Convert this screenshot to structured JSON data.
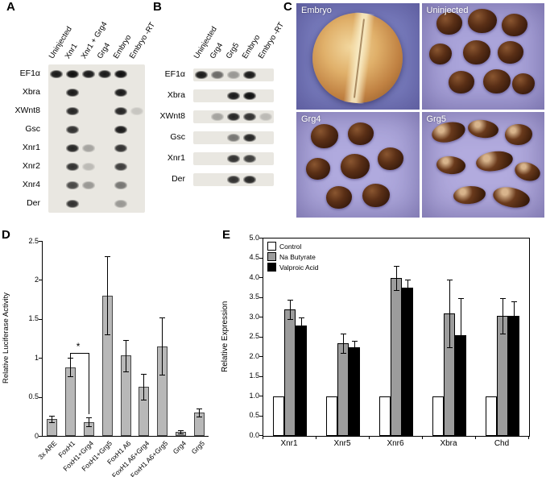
{
  "figure": {
    "panel_labels": {
      "A": "A",
      "B": "B",
      "C": "C",
      "D": "D",
      "E": "E"
    }
  },
  "gels": {
    "A": {
      "lanes": [
        "Uninjected",
        "Xnr1",
        "Xnr1 + Grg4",
        "Grg4",
        "Embryo",
        "Embryo -RT"
      ],
      "rows": [
        {
          "gene": "EF1α",
          "bands": [
            0.9,
            0.95,
            0.9,
            0.9,
            0.95,
            0
          ]
        },
        {
          "gene": "Xbra",
          "bands": [
            0,
            0.9,
            0,
            0,
            0.9,
            0
          ]
        },
        {
          "gene": "XWnt8",
          "bands": [
            0,
            0.85,
            0,
            0,
            0.85,
            0.15
          ]
        },
        {
          "gene": "Gsc",
          "bands": [
            0,
            0.8,
            0,
            0,
            0.9,
            0
          ]
        },
        {
          "gene": "Xnr1",
          "bands": [
            0,
            0.85,
            0.3,
            0,
            0.8,
            0
          ]
        },
        {
          "gene": "Xnr2",
          "bands": [
            0,
            0.8,
            0.2,
            0,
            0.75,
            0
          ]
        },
        {
          "gene": "Xnr4",
          "bands": [
            0,
            0.7,
            0.35,
            0,
            0.5,
            0
          ]
        },
        {
          "gene": "Der",
          "bands": [
            0,
            0.8,
            0,
            0,
            0.35,
            0
          ]
        }
      ]
    },
    "B": {
      "lanes": [
        "Uninjected",
        "Grg4",
        "Grg5",
        "Embryo",
        "Embryo -RT"
      ],
      "rows": [
        {
          "gene": "EF1α",
          "bands": [
            0.9,
            0.55,
            0.35,
            0.9,
            0
          ]
        },
        {
          "gene": "Xbra",
          "bands": [
            0,
            0,
            0.9,
            0.95,
            0
          ]
        },
        {
          "gene": "XWnt8",
          "bands": [
            0,
            0.3,
            0.85,
            0.8,
            0.2
          ]
        },
        {
          "gene": "Gsc",
          "bands": [
            0,
            0,
            0.5,
            0.85,
            0
          ]
        },
        {
          "gene": "Xnr1",
          "bands": [
            0,
            0,
            0.8,
            0.75,
            0
          ]
        },
        {
          "gene": "Der",
          "bands": [
            0,
            0,
            0.8,
            0.85,
            0
          ]
        }
      ]
    }
  },
  "micrographs": {
    "images": [
      {
        "title": "Embryo",
        "type": "embryo",
        "bg": "#7b7fc0"
      },
      {
        "title": "Uninjected",
        "type": "caps",
        "bg": "#aaa4da",
        "blobs": [
          [
            12,
            8,
            32,
            28,
            0
          ],
          [
            38,
            5,
            36,
            30,
            0
          ],
          [
            65,
            10,
            32,
            28,
            0
          ],
          [
            6,
            38,
            28,
            26,
            0
          ],
          [
            34,
            35,
            34,
            30,
            0
          ],
          [
            62,
            36,
            32,
            28,
            0
          ],
          [
            22,
            64,
            32,
            28,
            0
          ],
          [
            50,
            62,
            34,
            30,
            0
          ],
          [
            74,
            66,
            28,
            26,
            0
          ]
        ]
      },
      {
        "title": "Grg4",
        "type": "caps",
        "bg": "#b0aade",
        "blobs": [
          [
            12,
            12,
            34,
            30,
            0
          ],
          [
            42,
            10,
            32,
            28,
            0
          ],
          [
            8,
            44,
            30,
            27,
            0
          ],
          [
            36,
            40,
            36,
            31,
            0
          ],
          [
            66,
            34,
            32,
            28,
            0
          ],
          [
            24,
            70,
            32,
            28,
            0
          ],
          [
            54,
            68,
            34,
            29,
            0
          ]
        ]
      },
      {
        "title": "Grg5",
        "type": "elongated",
        "bg": "#b2abde",
        "blobs": [
          [
            8,
            10,
            42,
            24,
            -12
          ],
          [
            38,
            8,
            38,
            22,
            8
          ],
          [
            68,
            12,
            34,
            26,
            0
          ],
          [
            12,
            42,
            36,
            22,
            6
          ],
          [
            44,
            38,
            46,
            24,
            -8
          ],
          [
            76,
            48,
            32,
            22,
            18
          ],
          [
            26,
            70,
            40,
            22,
            -4
          ],
          [
            58,
            72,
            46,
            24,
            12
          ]
        ]
      }
    ]
  },
  "chart_data": [
    {
      "type": "bar",
      "panel": "D",
      "title": "",
      "categories": [
        "3x ARE",
        "FoxH1",
        "FoxH1+Grg4",
        "FoxH1+Grg5",
        "FoxH1 A6",
        "FoxH1 A6+Grg4",
        "FoxH1 A6+Grg5",
        "Grg4",
        "Grg5"
      ],
      "values": [
        0.22,
        0.88,
        0.18,
        1.8,
        1.03,
        0.63,
        1.15,
        0.05,
        0.3
      ],
      "errors": [
        0.04,
        0.12,
        0.06,
        0.5,
        0.2,
        0.17,
        0.37,
        0.02,
        0.05
      ],
      "xlabel": "",
      "ylabel": "Relative Luciferase Activity",
      "ylim": [
        0,
        2.5
      ],
      "yticks": [
        "0",
        "0.5",
        "1",
        "1.5",
        "2",
        "2.5"
      ],
      "grid": false,
      "bar_color": "#b8b8b8",
      "significance": {
        "from": "FoxH1",
        "to": "FoxH1+Grg4",
        "from_index": 1,
        "to_index": 2,
        "symbol": "*"
      }
    },
    {
      "type": "grouped-bar",
      "panel": "E",
      "title": "",
      "categories": [
        "Xnr1",
        "Xnr5",
        "Xnr6",
        "Xbra",
        "Chd"
      ],
      "series": [
        {
          "name": "Control",
          "color": "#ffffff",
          "values": [
            1.0,
            1.0,
            1.0,
            1.0,
            1.0
          ],
          "errors": [
            0,
            0,
            0,
            0,
            0
          ]
        },
        {
          "name": "Na Butyrate",
          "color": "#9c9c9c",
          "values": [
            3.2,
            2.35,
            4.0,
            3.1,
            3.05
          ],
          "errors": [
            0.25,
            0.25,
            0.3,
            0.85,
            0.45
          ]
        },
        {
          "name": "Valproic Acid",
          "color": "#000000",
          "values": [
            2.8,
            2.25,
            3.75,
            2.55,
            3.05
          ],
          "errors": [
            0.2,
            0.15,
            0.2,
            0.95,
            0.35
          ]
        }
      ],
      "xlabel": "",
      "ylabel": "Relative Expression",
      "ylim": [
        0,
        5.0
      ],
      "yticks": [
        "0.0",
        "0.5",
        "1.0",
        "1.5",
        "2.0",
        "2.5",
        "3.0",
        "3.5",
        "4.0",
        "4.5",
        "5.0"
      ],
      "grid": false,
      "legend_position": "top-left"
    }
  ]
}
